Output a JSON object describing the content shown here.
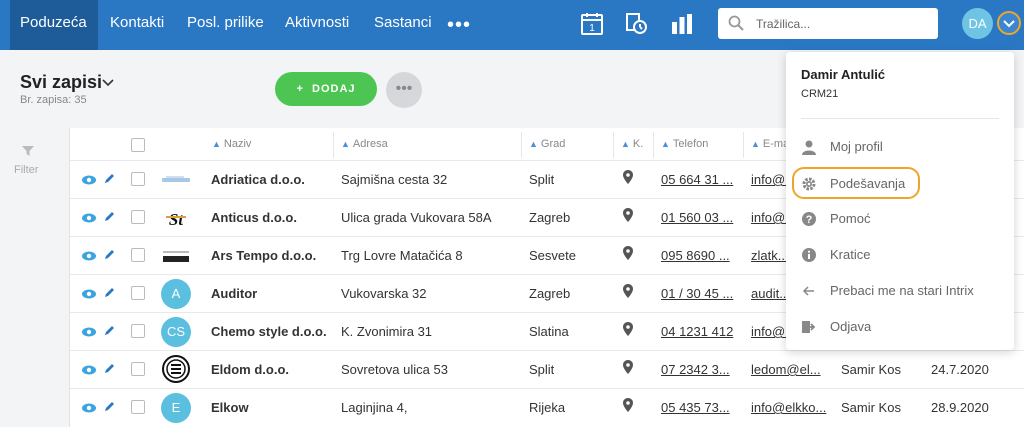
{
  "nav": {
    "items": [
      "Poduzeća",
      "Kontakti",
      "Posl. prilike",
      "Aktivnosti",
      "Sastanci"
    ],
    "more": "•••"
  },
  "search": {
    "placeholder": "Tražilica..."
  },
  "user": {
    "initials": "DA"
  },
  "header": {
    "title": "Svi zapisi",
    "record_count": "Br. zapisa: 35",
    "add_label": "DODAJ",
    "more_label": "•••"
  },
  "filter": {
    "label": "Filter"
  },
  "table": {
    "columns": [
      "Naziv",
      "Adresa",
      "Grad",
      "K.",
      "Telefon",
      "E-ma"
    ],
    "rows": [
      {
        "logo": "",
        "name": "Adriatica d.o.o.",
        "address": "Sajmišna cesta 32",
        "city": "Split",
        "phone": "05 664 31 ...",
        "email": "info@...",
        "owner": "",
        "date": ""
      },
      {
        "logo": "",
        "name": "Anticus d.o.o.",
        "address": "Ulica grada Vukovara 58A",
        "city": "Zagreb",
        "phone": "01 560 03 ...",
        "email": "info@...",
        "owner": "",
        "date": ""
      },
      {
        "logo": "",
        "name": "Ars Tempo d.o.o.",
        "address": "Trg Lovre Matačića 8",
        "city": "Sesvete",
        "phone": "095 8690 ...",
        "email": "zlatk...",
        "owner": "",
        "date": ""
      },
      {
        "logo": "A",
        "name": "Auditor",
        "address": "Vukovarska 32",
        "city": "Zagreb",
        "phone": "01 / 30 45 ...",
        "email": "audit...",
        "owner": "",
        "date": ""
      },
      {
        "logo": "CS",
        "name": "Chemo style d.o.o.",
        "address": "K. Zvonimira 31",
        "city": "Slatina",
        "phone": "04 1231 412",
        "email": "info@...",
        "owner": "",
        "date": ""
      },
      {
        "logo": "",
        "name": "Eldom d.o.o.",
        "address": "Sovretova ulica 53",
        "city": "Split",
        "phone": "07 2342 3...",
        "email": "ledom@el...",
        "owner": "Samir Kos",
        "date": "24.7.2020"
      },
      {
        "logo": "E",
        "name": "Elkow",
        "address": "Laginjina 4,",
        "city": "Rijeka",
        "phone": "05 435 73...",
        "email": "info@elkko...",
        "owner": "Samir Kos",
        "date": "28.9.2020"
      }
    ]
  },
  "dropdown": {
    "name": "Damir Antulić",
    "org": "CRM21",
    "items": [
      "Moj profil",
      "Podešavanja",
      "Pomoć",
      "Kratice",
      "Prebaci me na stari Intrix",
      "Odjava"
    ]
  },
  "colors": {
    "nav_bg": "#2a78c4",
    "nav_active": "#1d5c99",
    "add_green": "#4cc552",
    "highlight_orange": "#f0a52a",
    "avatar_blue": "#5bbfe0"
  }
}
